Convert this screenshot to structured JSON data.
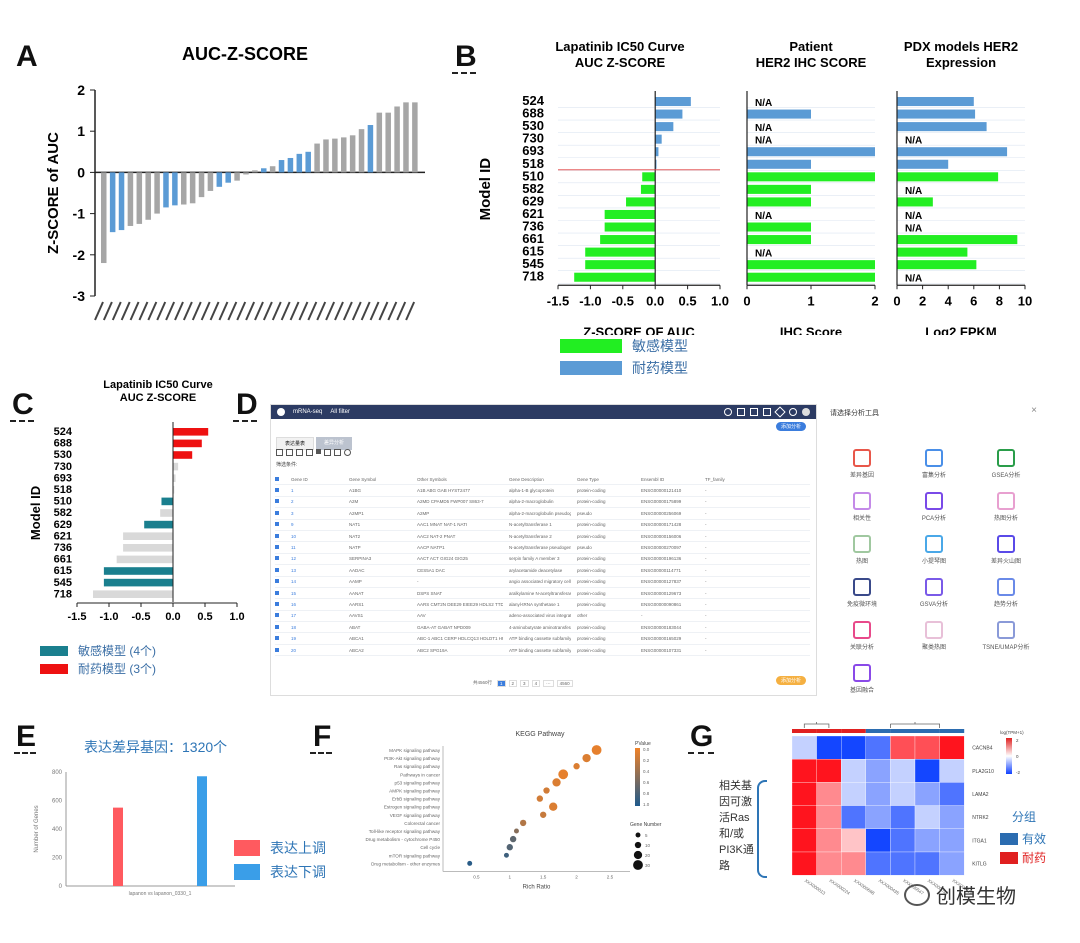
{
  "panels": {
    "A": "A",
    "B": "B",
    "C": "C",
    "D": "D",
    "E": "E",
    "F": "F",
    "G": "G"
  },
  "chart_data": [
    {
      "id": "A",
      "type": "bar",
      "title": "AUC-Z-SCORE",
      "ylabel": "Z-SCORE of AUC",
      "ylim": [
        -3,
        2
      ],
      "yticks": [
        2,
        1,
        0,
        -1,
        -2,
        -3
      ],
      "values": [
        -2.2,
        -1.45,
        -1.4,
        -1.3,
        -1.25,
        -1.15,
        -1.0,
        -0.85,
        -0.8,
        -0.78,
        -0.75,
        -0.6,
        -0.45,
        -0.35,
        -0.25,
        -0.2,
        -0.05,
        0.05,
        0.1,
        0.15,
        0.3,
        0.35,
        0.45,
        0.5,
        0.7,
        0.8,
        0.82,
        0.85,
        0.9,
        1.05,
        1.15,
        1.45,
        1.45,
        1.6,
        1.7,
        1.7
      ],
      "colors": [
        "#a6a6a6",
        "#5b9bd5",
        "#5b9bd5",
        "#a6a6a6",
        "#a6a6a6",
        "#a6a6a6",
        "#a6a6a6",
        "#5b9bd5",
        "#5b9bd5",
        "#a6a6a6",
        "#a6a6a6",
        "#a6a6a6",
        "#a6a6a6",
        "#5b9bd5",
        "#5b9bd5",
        "#a6a6a6",
        "#a6a6a6",
        "#a6a6a6",
        "#5b9bd5",
        "#a6a6a6",
        "#5b9bd5",
        "#5b9bd5",
        "#5b9bd5",
        "#5b9bd5",
        "#a6a6a6",
        "#a6a6a6",
        "#a6a6a6",
        "#a6a6a6",
        "#a6a6a6",
        "#a6a6a6",
        "#5b9bd5",
        "#a6a6a6",
        "#a6a6a6",
        "#a6a6a6",
        "#a6a6a6",
        "#a6a6a6"
      ]
    },
    {
      "id": "B1",
      "type": "bar",
      "orientation": "horizontal",
      "title": "Lapatinib IC50 Curve\nAUC Z-SCORE",
      "ylabel": "Model ID",
      "xlabel": "Z-SCORE OF AUC",
      "categories": [
        "524",
        "688",
        "530",
        "730",
        "693",
        "518",
        "510",
        "582",
        "629",
        "621",
        "736",
        "661",
        "615",
        "545",
        "718"
      ],
      "values": [
        0.55,
        0.42,
        0.28,
        0.1,
        0.05,
        0.02,
        -0.2,
        -0.22,
        -0.45,
        -0.78,
        -0.78,
        -0.85,
        -1.08,
        -1.08,
        -1.25
      ],
      "xlim": [
        -1.5,
        1.0
      ],
      "xticks": [
        "-1.5",
        "-1.0",
        "-0.5",
        "0.0",
        "0.5",
        "1.0"
      ]
    },
    {
      "id": "B2",
      "type": "bar",
      "orientation": "horizontal",
      "title": "Patient\nHER2 IHC SCORE",
      "xlabel": "IHC Score",
      "categories": [
        "524",
        "688",
        "530",
        "730",
        "693",
        "518",
        "510",
        "582",
        "629",
        "621",
        "736",
        "661",
        "615",
        "545",
        "718"
      ],
      "values": [
        null,
        1,
        null,
        null,
        2,
        1,
        2,
        1,
        1,
        null,
        1,
        1,
        null,
        2,
        2
      ],
      "na_label": "N/A",
      "xlim": [
        0,
        2
      ],
      "xticks": [
        "0",
        "1",
        "2"
      ]
    },
    {
      "id": "B3",
      "type": "bar",
      "orientation": "horizontal",
      "title": "PDX models HER2\nExpression",
      "xlabel": "Log2 FPKM",
      "categories": [
        "524",
        "688",
        "530",
        "730",
        "693",
        "518",
        "510",
        "582",
        "629",
        "621",
        "736",
        "661",
        "615",
        "545",
        "718"
      ],
      "values": [
        6,
        6.1,
        7,
        null,
        8.6,
        4,
        7.9,
        null,
        2.8,
        null,
        null,
        9.4,
        5.5,
        6.2,
        null
      ],
      "na_label": "N/A",
      "xlim": [
        0,
        10
      ],
      "xticks": [
        "0",
        "2",
        "4",
        "6",
        "8",
        "10"
      ]
    },
    {
      "id": "C",
      "type": "bar",
      "orientation": "horizontal",
      "title": "Lapatinib IC50 Curve\nAUC Z-SCORE",
      "ylabel": "Model ID",
      "xlabel": "Z-SCORE of AUC",
      "categories": [
        "524",
        "688",
        "530",
        "730",
        "693",
        "518",
        "510",
        "582",
        "629",
        "621",
        "736",
        "661",
        "615",
        "545",
        "718"
      ],
      "values": [
        0.55,
        0.45,
        0.3,
        0.08,
        0.04,
        0.02,
        -0.18,
        -0.2,
        -0.45,
        -0.78,
        -0.78,
        -0.88,
        -1.08,
        -1.08,
        -1.25
      ],
      "xlim": [
        -1.5,
        1.0
      ],
      "xticks": [
        "-1.5",
        "-1.0",
        "-0.5",
        "0.0",
        "0.5",
        "1.0"
      ]
    },
    {
      "id": "E",
      "type": "bar",
      "title": "表达差异基因：1320个",
      "ylabel": "Number of Genes",
      "xlabel": "lapanon vs lapanon_0330_1",
      "categories": [
        "up",
        "down"
      ],
      "values": [
        550,
        770
      ],
      "ylim": [
        0,
        800
      ],
      "yticks": [
        "800",
        "600",
        "400",
        "200",
        "0"
      ]
    },
    {
      "id": "F",
      "type": "scatter",
      "title": "KEGG Pathway",
      "xlabel": "Rich Ratio",
      "xticks": [
        "0.5",
        "1",
        "1.5",
        "2",
        "2.5"
      ],
      "categories": [
        "MAPK signaling pathway",
        "PI3K-Akt signaling pathway",
        "Ras signaling pathway",
        "Pathways in cancer",
        "p53 signaling pathway",
        "AMPK signaling pathway",
        "ErbB signaling pathway",
        "Estrogen signaling pathway",
        "VEGF signaling pathway",
        "Colorectal cancer",
        "Toll-like receptor signaling pathway",
        "Drug metabolism - cytochrome P450",
        "Cell cycle",
        "mTOR signaling pathway",
        "Drug metabolism - other enzymes"
      ],
      "x": [
        2.3,
        2.15,
        2.0,
        1.8,
        1.7,
        1.55,
        1.45,
        1.65,
        1.5,
        1.2,
        1.1,
        1.05,
        1.0,
        0.95,
        0.4
      ],
      "size": [
        30,
        20,
        10,
        30,
        20,
        10,
        10,
        20,
        10,
        10,
        5,
        10,
        10,
        5,
        5
      ],
      "pvalue": [
        0.05,
        0.1,
        0.1,
        0.05,
        0.1,
        0.15,
        0.15,
        0.1,
        0.2,
        0.3,
        0.5,
        0.7,
        0.75,
        0.85,
        0.95
      ],
      "legend_title_color": "PValue",
      "color_ticks": [
        "0.0",
        "0.2",
        "0.4",
        "0.6",
        "0.8",
        "1.0"
      ],
      "legend_title_size": "Gene Number",
      "size_ticks": [
        "5",
        "10",
        "20",
        "30"
      ]
    },
    {
      "id": "G",
      "type": "heatmap",
      "rows": [
        "CACNB4",
        "PLA2G10",
        "LAMA2",
        "NTRK2",
        "ITGA1",
        "KITLG"
      ],
      "cols": [
        "XXX000013",
        "XXX000224",
        "XXX000668",
        "XXX000435",
        "XXX000547",
        "XXX000019",
        "XXX000328"
      ],
      "values": [
        [
          -0.5,
          -2,
          -2,
          -1.5,
          1.5,
          1.5,
          2
        ],
        [
          2,
          2,
          -0.5,
          -1,
          -0.5,
          -2,
          -0.5
        ],
        [
          2,
          1,
          -0.5,
          -1,
          -0.5,
          -1,
          -1.5
        ],
        [
          2,
          1,
          -1.5,
          -1,
          -1.5,
          -0.5,
          -1
        ],
        [
          2,
          1,
          0.5,
          -2,
          -1.5,
          -1,
          -1
        ],
        [
          2,
          1,
          1,
          -1.5,
          -1.5,
          -1.5,
          -1
        ]
      ],
      "colorbar_title": "log(TPM+1)",
      "colorbar_ticks": [
        "2",
        "0",
        "-2"
      ]
    }
  ],
  "panelB": {
    "legend": [
      {
        "label": "敏感模型",
        "color": "#22ee22"
      },
      {
        "label": "耐药模型",
        "color": "#5b9bd5"
      }
    ]
  },
  "panelC": {
    "legend": [
      {
        "label": "敏感模型 (4个)",
        "color": "#1a7f8e"
      },
      {
        "label": "耐药模型 (3个)",
        "color": "#ee1111"
      }
    ]
  },
  "panelE": {
    "legend": [
      {
        "label": "表达上调",
        "color": "#ff5a5f"
      },
      {
        "label": "表达下调",
        "color": "#3a9ee8"
      }
    ]
  },
  "panelG": {
    "side_label": "相关基因可激活Ras和/或PI3K通路",
    "legend_title": "分组",
    "legend": [
      {
        "label": "有效",
        "color": "#2b6cb0"
      },
      {
        "label": "耐药",
        "color": "#e02020"
      }
    ]
  },
  "app": {
    "title": "mRNA-seq",
    "filter": "All filter",
    "action_button": "添加分析",
    "tabs": [
      "表达量表",
      "差异分析"
    ],
    "filter_label": "筛选条件:",
    "columns": [
      "Gene ID",
      "Gene Symbol",
      "Other Symbols",
      "Gene Description",
      "Gene Type",
      "Ensembl ID",
      "TF_family"
    ],
    "rows": [
      [
        "1",
        "A1BG",
        "A1B ABG GAB HYST2477",
        "alpha-1-B glycoprotein",
        "protein-coding",
        "ENSG00000121410",
        "-"
      ],
      [
        "2",
        "A2M",
        "A2MD CPAMD5 FWP007 S863-7",
        "alpha-2-macroglobulin",
        "protein-coding",
        "ENSG00000175899",
        "-"
      ],
      [
        "3",
        "A2MP1",
        "A2MP",
        "alpha-2-macroglobulin pseudogene 1",
        "pseudo",
        "ENSG00000256069",
        "-"
      ],
      [
        "9",
        "NAT1",
        "AAC1 MNAT NAT-1 NATI",
        "N-acetyltransferase 1",
        "protein-coding",
        "ENSG00000171428",
        "-"
      ],
      [
        "10",
        "NAT2",
        "AAC2 NAT-2 PNAT",
        "N-acetyltransferase 2",
        "protein-coding",
        "ENSG00000156006",
        "-"
      ],
      [
        "11",
        "NATP",
        "AACP NATP1",
        "N-acetyltransferase pseudogene",
        "pseudo",
        "ENSG00000270097",
        "-"
      ],
      [
        "12",
        "SERPINA3",
        "AACT ACT GIG24 GIG25",
        "serpin family A member 3",
        "protein-coding",
        "ENSG00000196136",
        "-"
      ],
      [
        "13",
        "AADAC",
        "CES5A1 DAC",
        "arylacetamide deacetylase",
        "protein-coding",
        "ENSG00000114771",
        "-"
      ],
      [
        "14",
        "AAMP",
        "-",
        "angio associated migratory cell protein",
        "protein-coding",
        "ENSG00000127837",
        "-"
      ],
      [
        "15",
        "AANAT",
        "DSPS SNAT",
        "aralkylamine N-acetyltransferase",
        "protein-coding",
        "ENSG00000129673",
        "-"
      ],
      [
        "16",
        "AARS1",
        "AARS CMT2N DEE29 EIEE29 HDLS2 TTD8",
        "alanyl-tRNA synthetase 1",
        "protein-coding",
        "ENSG00000090861",
        "-"
      ],
      [
        "17",
        "AAVS1",
        "AAV",
        "adeno-associated virus integration site 1",
        "other",
        "-",
        "-"
      ],
      [
        "18",
        "ABAT",
        "GABA-AT GABAT NPD009",
        "4-aminobutyrate aminotransferase",
        "protein-coding",
        "ENSG00000183044",
        "-"
      ],
      [
        "19",
        "ABCA1",
        "ABC-1 ABC1 CERP HDLCQ13 HDLDT1 HPALP2",
        "ATP binding cassette subfamily A member 1",
        "protein-coding",
        "ENSG00000165029",
        "-"
      ],
      [
        "20",
        "ABCA2",
        "ABC2 SPG19A",
        "ATP binding cassette subfamily A member 2",
        "protein-coding",
        "ENSG00000107331",
        "-"
      ]
    ],
    "pagination": [
      "共4560行",
      "1",
      "2",
      "3",
      "4",
      "···",
      "4560"
    ],
    "next_button": "添加分析"
  },
  "tools": {
    "title": "请选择分析工具",
    "close": "×",
    "items": [
      "差异基因",
      "富集分析",
      "GSEA分析",
      "相关性",
      "PCA分析",
      "热图分析",
      "热图",
      "小提琴图",
      "差异火山图",
      "免疫微环境",
      "GSVA分析",
      "趋势分析",
      "关联分析",
      "聚类热图",
      "TSNE/UMAP分析",
      "基因融合"
    ]
  },
  "watermark": "创模生物"
}
